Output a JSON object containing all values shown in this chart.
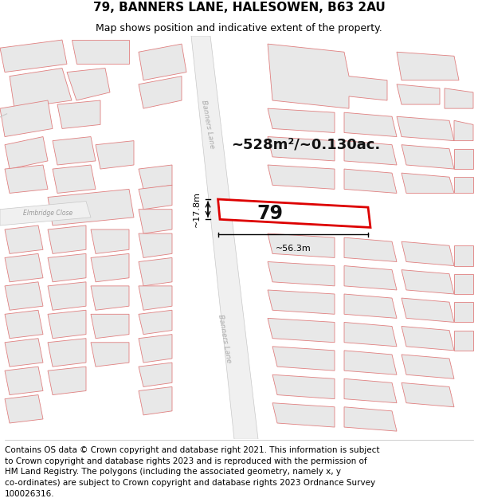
{
  "title_line1": "79, BANNERS LANE, HALESOWEN, B63 2AU",
  "title_line2": "Map shows position and indicative extent of the property.",
  "footer_lines": [
    "Contains OS data © Crown copyright and database right 2021. This information is subject",
    "to Crown copyright and database rights 2023 and is reproduced with the permission of",
    "HM Land Registry. The polygons (including the associated geometry, namely x, y",
    "co-ordinates) are subject to Crown copyright and database rights 2023 Ordnance Survey",
    "100026316."
  ],
  "area_label": "~528m²/~0.130ac.",
  "plot_number": "79",
  "dim_width": "~56.3m",
  "dim_height": "~17.8m",
  "road_label_top": "Banners Lane",
  "road_label_bottom": "Banners Lane",
  "street_label": "Elmbridge Close",
  "map_bg": "#ffffff",
  "plot_fill": "#ffffff",
  "plot_border": "#dd0000",
  "road_color": "#f0f0f0",
  "road_border_color": "#c8c8c8",
  "building_fill": "#e8e8e8",
  "building_border": "#e08080",
  "title_fontsize": 11,
  "subtitle_fontsize": 9,
  "footer_fontsize": 7.5
}
